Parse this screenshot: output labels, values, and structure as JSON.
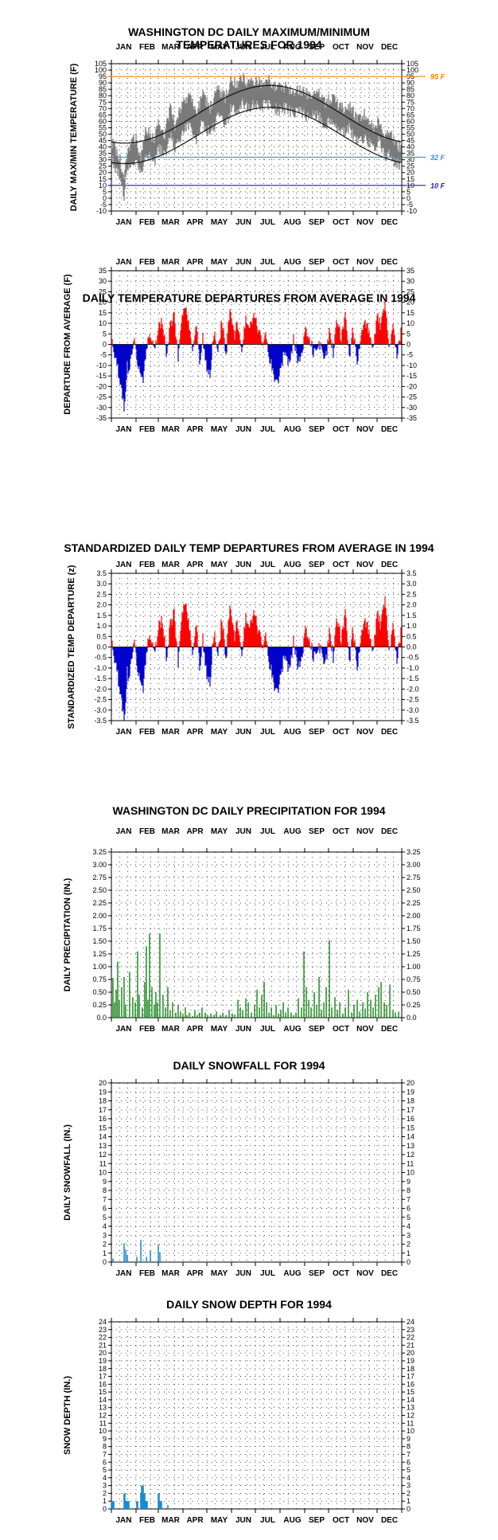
{
  "months": [
    "JAN",
    "FEB",
    "MAR",
    "APR",
    "MAY",
    "JUN",
    "JUL",
    "AUG",
    "SEP",
    "OCT",
    "NOV",
    "DEC"
  ],
  "chart_data": [
    {
      "id": "temps",
      "type": "line",
      "title": "WASHINGTON DC DAILY MAXIMUM/MINIMUM TEMPERATURES FOR 1994",
      "ylabel": "DAILY MAX/MIN TEMPERATURE (F)",
      "ylim": [
        -10,
        105
      ],
      "ytick_step": 5,
      "yticks": [
        "-10",
        "-5",
        "0",
        "5",
        "10",
        "15",
        "20",
        "25",
        "30",
        "35",
        "40",
        "45",
        "50",
        "55",
        "60",
        "65",
        "70",
        "75",
        "80",
        "85",
        "90",
        "95",
        "100",
        "105"
      ],
      "reference_lines": [
        {
          "value": 95,
          "label": "95 F",
          "color": "#ff7f00"
        },
        {
          "value": 32,
          "label": "32 F",
          "color": "#1a9fd6"
        },
        {
          "value": 10,
          "label": "10 F",
          "color": "#1f1fc4"
        }
      ],
      "series": [
        {
          "color": "#7a7a7a",
          "knots_day": [
            1,
            5,
            12,
            17,
            20,
            25,
            32,
            38,
            45,
            55,
            60,
            68,
            75,
            82,
            90,
            100,
            108,
            115,
            125,
            135,
            145,
            152,
            158,
            165,
            172,
            182,
            190,
            200,
            210,
            220,
            230,
            240,
            250,
            260,
            270,
            280,
            290,
            300,
            310,
            320,
            330,
            337,
            345,
            352,
            358,
            365
          ],
          "knots_high": [
            45,
            40,
            30,
            10,
            35,
            42,
            48,
            30,
            55,
            45,
            60,
            50,
            70,
            55,
            75,
            80,
            65,
            82,
            70,
            85,
            78,
            95,
            88,
            96,
            90,
            93,
            90,
            92,
            85,
            88,
            84,
            85,
            80,
            82,
            75,
            78,
            70,
            72,
            62,
            65,
            55,
            60,
            50,
            52,
            42,
            40
          ],
          "knots_low": [
            32,
            26,
            18,
            -2,
            20,
            25,
            33,
            18,
            35,
            28,
            40,
            32,
            48,
            38,
            52,
            58,
            45,
            60,
            50,
            63,
            58,
            70,
            66,
            74,
            70,
            73,
            72,
            74,
            68,
            70,
            67,
            67,
            63,
            65,
            57,
            60,
            52,
            54,
            45,
            47,
            38,
            44,
            33,
            36,
            28,
            26
          ]
        },
        {
          "color": "#111111",
          "normal_high_min": 43,
          "normal_high_max": 88,
          "normal_low_min": 27,
          "normal_low_max": 71,
          "peak_day": 200
        }
      ]
    },
    {
      "id": "departure",
      "type": "bar",
      "title": "DAILY TEMPERATURE DEPARTURES FROM AVERAGE IN 1994",
      "ylabel": "DEPARTURE FROM AVERAGE (F)",
      "ylim": [
        -35,
        35
      ],
      "ytick_step": 5,
      "yticks": [
        "-35",
        "-30",
        "-25",
        "-20",
        "-15",
        "-10",
        "-5",
        "0",
        "5",
        "10",
        "15",
        "20",
        "25",
        "30",
        "35"
      ],
      "positive_color": "#ff0000",
      "negative_color": "#0000cc",
      "knots_day": [
        1,
        5,
        9,
        13,
        17,
        19,
        21,
        23,
        26,
        30,
        34,
        38,
        41,
        45,
        50,
        55,
        60,
        65,
        70,
        75,
        80,
        85,
        90,
        95,
        100,
        104,
        108,
        112,
        116,
        120,
        125,
        130,
        135,
        140,
        145,
        150,
        155,
        160,
        165,
        170,
        175,
        180,
        185,
        190,
        195,
        200,
        205,
        210,
        215,
        220,
        225,
        230,
        235,
        240,
        245,
        250,
        255,
        260,
        265,
        270,
        275,
        280,
        285,
        290,
        295,
        300,
        305,
        310,
        315,
        320,
        325,
        330,
        335,
        340,
        345,
        350,
        355,
        360,
        365
      ],
      "knots_value": [
        2,
        -6,
        -12,
        -18,
        -31,
        -25,
        -8,
        -14,
        -5,
        3,
        -8,
        -13,
        -16,
        -2,
        6,
        -4,
        8,
        12,
        -5,
        9,
        14,
        -6,
        12,
        17,
        8,
        -4,
        10,
        -8,
        4,
        -10,
        -14,
        6,
        -4,
        12,
        -6,
        18,
        4,
        10,
        -4,
        14,
        6,
        16,
        8,
        2,
        4,
        -7,
        -14,
        -20,
        -8,
        -4,
        -10,
        2,
        -8,
        -4,
        6,
        4,
        -4,
        -2,
        2,
        -8,
        6,
        -4,
        12,
        2,
        14,
        -6,
        8,
        -10,
        4,
        10,
        6,
        -2,
        14,
        8,
        20,
        -4,
        10,
        -6,
        6
      ]
    },
    {
      "id": "standardized",
      "type": "bar",
      "title": "STANDARDIZED DAILY TEMP DEPARTURES FROM AVERAGE IN 1994",
      "ylabel": "STANDARDIZED TEMP DEPARTURE (z)",
      "ylim": [
        -3.5,
        3.5
      ],
      "ytick_step": 0.5,
      "yticks": [
        "-3.5",
        "-3.0",
        "-2.5",
        "-2.0",
        "-1.5",
        "-1.0",
        "-0.5",
        "0.0",
        "0.5",
        "1.0",
        "1.5",
        "2.0",
        "2.5",
        "3.0",
        "3.5"
      ],
      "positive_color": "#ff0000",
      "negative_color": "#0000cc",
      "derived_from": "departure",
      "scale_divisor": 8.5
    },
    {
      "id": "precip",
      "type": "bar",
      "title": "WASHINGTON DC DAILY PRECIPITATION FOR 1994",
      "ylabel": "DAILY PRECIPITATION (IN.)",
      "ylim": [
        0,
        3.25
      ],
      "ytick_step": 0.25,
      "yticks": [
        "0.0",
        "0.25",
        "0.50",
        "0.75",
        "1.00",
        "1.25",
        "1.50",
        "1.75",
        "2.00",
        "2.25",
        "2.50",
        "2.75",
        "3.00",
        "3.25"
      ],
      "bar_color": "#007a00",
      "days": [
        3,
        5,
        7,
        9,
        11,
        14,
        17,
        19,
        24,
        28,
        31,
        34,
        36,
        40,
        43,
        45,
        47,
        49,
        52,
        55,
        57,
        59,
        62,
        66,
        69,
        72,
        75,
        78,
        82,
        85,
        88,
        91,
        94,
        96,
        99,
        103,
        106,
        109,
        112,
        115,
        119,
        122,
        126,
        130,
        133,
        138,
        141,
        145,
        149,
        153,
        156,
        160,
        163,
        166,
        170,
        173,
        177,
        181,
        184,
        187,
        190,
        193,
        196,
        199,
        202,
        205,
        208,
        211,
        214,
        217,
        220,
        223,
        227,
        230,
        233,
        236,
        240,
        243,
        246,
        249,
        252,
        256,
        259,
        262,
        265,
        268,
        271,
        275,
        278,
        282,
        285,
        288,
        292,
        295,
        299,
        303,
        306,
        310,
        313,
        317,
        320,
        323,
        327,
        330,
        333,
        337,
        340,
        344,
        347,
        351,
        355,
        358,
        362
      ],
      "values": [
        0.78,
        0.3,
        0.55,
        1.1,
        0.35,
        0.6,
        0.8,
        0.25,
        0.9,
        0.4,
        0.3,
        1.3,
        0.45,
        0.2,
        0.7,
        1.4,
        0.35,
        1.65,
        0.6,
        0.25,
        0.5,
        0.3,
        1.65,
        0.45,
        0.2,
        0.6,
        0.15,
        0.3,
        0.1,
        0.25,
        0.12,
        0.08,
        0.2,
        0.05,
        0.1,
        0.03,
        0.15,
        0.05,
        0.1,
        0.2,
        0.1,
        0.05,
        0.08,
        0.05,
        0.12,
        0.05,
        0.1,
        0.05,
        0.15,
        0.08,
        0.06,
        0.35,
        0.2,
        0.15,
        0.38,
        0.3,
        0.1,
        0.25,
        0.55,
        0.2,
        0.45,
        0.7,
        0.3,
        0.1,
        0.2,
        0.05,
        0.25,
        0.08,
        0.15,
        0.3,
        0.1,
        0.2,
        0.1,
        0.05,
        0.1,
        0.38,
        0.2,
        1.3,
        0.6,
        0.35,
        0.2,
        0.5,
        0.25,
        0.8,
        0.15,
        0.3,
        0.6,
        1.52,
        0.2,
        0.4,
        0.15,
        0.3,
        0.08,
        0.2,
        0.55,
        0.1,
        0.25,
        0.35,
        0.12,
        0.3,
        0.18,
        0.5,
        0.35,
        0.2,
        0.45,
        0.6,
        0.7,
        0.3,
        0.25,
        0.65,
        0.15,
        0.1,
        0.12
      ]
    },
    {
      "id": "snowfall",
      "type": "bar",
      "title": "DAILY SNOWFALL FOR 1994",
      "ylabel": "DAILY SNOWFALL (IN.)",
      "ylim": [
        0,
        20
      ],
      "ytick_step": 1,
      "yticks": [
        "0",
        "1",
        "2",
        "3",
        "4",
        "5",
        "6",
        "7",
        "8",
        "9",
        "10",
        "11",
        "12",
        "13",
        "14",
        "15",
        "16",
        "17",
        "18",
        "19",
        "20"
      ],
      "bar_color": "#1a8ad0",
      "days": [
        3,
        17,
        19,
        21,
        33,
        38,
        45,
        50,
        60,
        62
      ],
      "values": [
        0.4,
        2.1,
        1.4,
        0.8,
        0.6,
        2.5,
        0.6,
        1.3,
        2.0,
        1.1
      ]
    },
    {
      "id": "snowdepth",
      "type": "bar",
      "title": "DAILY SNOW DEPTH FOR 1994",
      "ylabel": "SNOW DEPTH (IN.)",
      "ylim": [
        0,
        24
      ],
      "ytick_step": 1,
      "yticks": [
        "0",
        "1",
        "2",
        "3",
        "4",
        "5",
        "6",
        "7",
        "8",
        "9",
        "10",
        "11",
        "12",
        "13",
        "14",
        "15",
        "16",
        "17",
        "18",
        "19",
        "20",
        "21",
        "22",
        "23",
        "24"
      ],
      "bar_color": "#1a8ad0",
      "days": [
        1,
        2,
        3,
        4,
        17,
        18,
        19,
        20,
        21,
        22,
        23,
        33,
        34,
        38,
        39,
        40,
        41,
        42,
        43,
        44,
        45,
        46,
        60,
        61,
        62,
        63,
        64,
        72
      ],
      "values": [
        1,
        1,
        1,
        1,
        2,
        2,
        1,
        1,
        1,
        1,
        1,
        1,
        1,
        2,
        3,
        3,
        3,
        2,
        2,
        1,
        1,
        1,
        2,
        2,
        1,
        1,
        1,
        0.5
      ]
    }
  ]
}
